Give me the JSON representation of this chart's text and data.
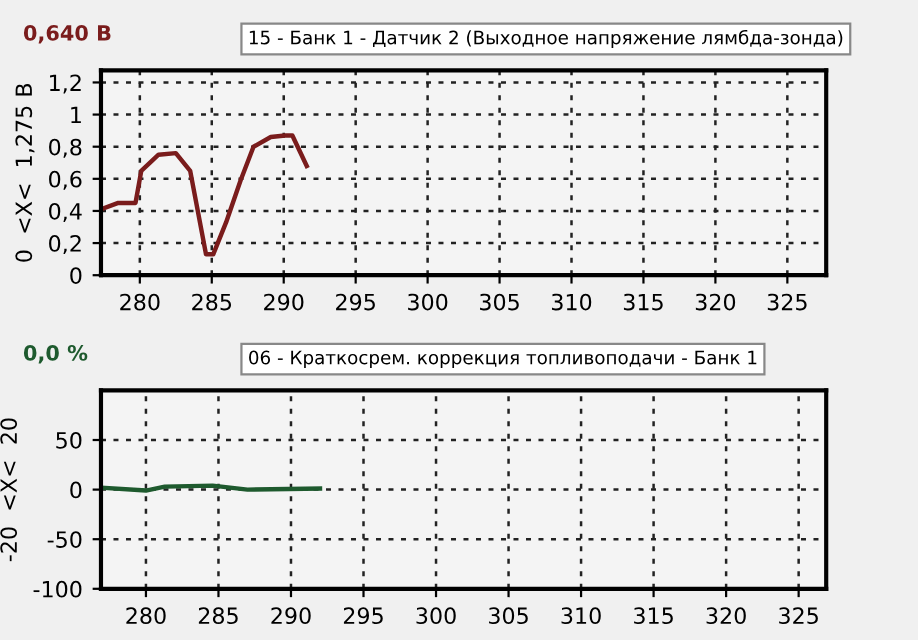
{
  "chart_data": [
    {
      "type": "line",
      "title": "15 - Банк 1 - Датчик 2 (Выходное напряжение лямбда-зонда)",
      "ylabel": "0  <X<  1,275 В",
      "annotations": [
        "0,640 В"
      ],
      "series": [
        {
          "color": "#7a1c1c",
          "x": [
            277.3,
            278.5,
            279.7,
            280.1,
            281.3,
            282.5,
            283.5,
            284.6,
            285.1,
            286.0,
            287.0,
            287.9,
            289.1,
            290.1,
            290.6,
            291.6
          ],
          "values": [
            0.41,
            0.45,
            0.45,
            0.65,
            0.75,
            0.76,
            0.65,
            0.13,
            0.13,
            0.33,
            0.59,
            0.8,
            0.86,
            0.87,
            0.87,
            0.68
          ]
        }
      ],
      "xlim": [
        277.3,
        327.7
      ],
      "xticks": [
        280,
        285,
        290,
        295,
        300,
        305,
        310,
        315,
        320,
        325
      ],
      "ylim": [
        0,
        1.275
      ],
      "yticks": [
        0,
        {
          "value": 0.2,
          "label": "0,2"
        },
        {
          "value": 0.4,
          "label": "0,4"
        },
        {
          "value": 0.6,
          "label": "0,6"
        },
        {
          "value": 0.8,
          "label": "0,8"
        },
        1,
        {
          "value": 1.2,
          "label": "1,2"
        }
      ],
      "grid": true,
      "line_style": "solid",
      "legend": false
    },
    {
      "type": "line",
      "title": "06 - Краткосрем. коррекция топливоподачи - Банк 1",
      "ylabel": "-20  <X<  20",
      "annotations": [
        "0,0 %"
      ],
      "series": [
        {
          "color": "#1e5a2e",
          "x": [
            276.9,
            280.0,
            281.3,
            284.6,
            287.0,
            292.0
          ],
          "values": [
            2,
            -1,
            3,
            4,
            0,
            1
          ]
        }
      ],
      "xlim": [
        276.9,
        326.9
      ],
      "xticks": [
        280,
        285,
        290,
        295,
        300,
        305,
        310,
        315,
        320,
        325
      ],
      "ylim": [
        -100,
        100
      ],
      "yticks": [
        -100,
        -50,
        0,
        50
      ],
      "grid": true,
      "line_style": "solid",
      "legend": false
    }
  ]
}
